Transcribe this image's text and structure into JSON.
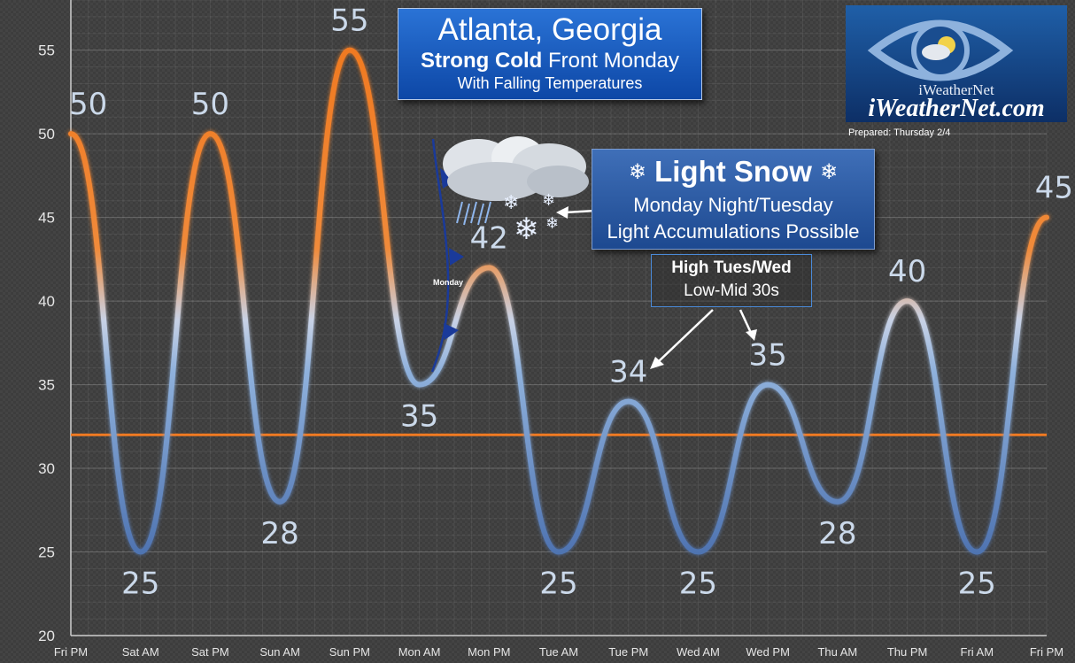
{
  "title": {
    "line1": "Atlanta, Georgia",
    "line2_bold": "Strong Cold",
    "line2_rest": " Front Monday",
    "line3": "With Falling Temperatures"
  },
  "logo": {
    "brand_small": "iWeatherNet",
    "brand_large": "iWeatherNet.com"
  },
  "prepared": "Prepared: Thursday 2/4",
  "snow_callout": {
    "heading": "Light Snow",
    "line1": "Monday Night/Tuesday",
    "line2": "Light Accumulations Possible",
    "icon": "snowflake-icon"
  },
  "high_callout": {
    "heading": "High Tues/Wed",
    "line1": "Low-Mid 30s"
  },
  "front_label": "Monday",
  "colors": {
    "warm": "#f07a22",
    "cool": "#5b86c4",
    "freezing_line": "#f07a22",
    "front": "#1a3a9a"
  },
  "chart_data": {
    "type": "line",
    "categories": [
      "Fri PM",
      "Sat AM",
      "Sat PM",
      "Sun AM",
      "Sun PM",
      "Mon AM",
      "Mon PM",
      "Tue AM",
      "Tue PM",
      "Wed AM",
      "Wed PM",
      "Thu AM",
      "Thu PM",
      "Fri AM",
      "Fri PM"
    ],
    "series": [
      {
        "values": [
          50,
          25,
          50,
          28,
          55,
          35,
          42,
          25,
          34,
          25,
          35,
          28,
          40,
          25,
          45
        ]
      }
    ],
    "data_labels": [
      "50",
      "25",
      "50",
      "28",
      "55",
      "35",
      "42",
      "25",
      "34",
      "25",
      "35",
      "28",
      "40",
      "25",
      "45"
    ],
    "yticks": [
      20,
      25,
      30,
      35,
      40,
      45,
      50,
      55
    ],
    "ylim": [
      20,
      58
    ],
    "reference_line": 32,
    "grid": true,
    "legend": "none"
  }
}
